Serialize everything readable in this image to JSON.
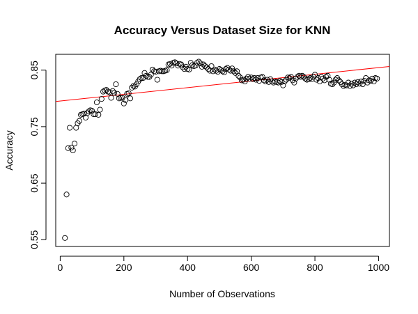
{
  "chart_data": {
    "type": "scatter",
    "title": "Accuracy Versus Dataset Size for KNN",
    "xlabel": "Number of Observations",
    "ylabel": "Accuracy",
    "xlim": [
      -14,
      1034
    ],
    "ylim": [
      0.538,
      0.878
    ],
    "xticks": [
      0,
      200,
      400,
      600,
      800,
      1000
    ],
    "xtick_labels": [
      "0",
      "200",
      "400",
      "600",
      "800",
      "1000"
    ],
    "yticks": [
      0.55,
      0.65,
      0.75,
      0.85
    ],
    "ytick_labels": [
      "0.55",
      "0.65",
      "0.75",
      "0.85"
    ],
    "grid": false,
    "point_color": "#000000",
    "fit_color": "#ff0000",
    "fit_line": {
      "x": [
        -14,
        1034
      ],
      "y": [
        0.7945,
        0.8565
      ]
    },
    "points": [
      [
        15,
        0.553
      ],
      [
        20,
        0.63
      ],
      [
        25,
        0.712
      ],
      [
        30,
        0.748
      ],
      [
        35,
        0.713
      ],
      [
        40,
        0.708
      ],
      [
        45,
        0.72
      ],
      [
        50,
        0.748
      ],
      [
        55,
        0.756
      ],
      [
        60,
        0.76
      ],
      [
        65,
        0.771
      ],
      [
        70,
        0.772
      ],
      [
        75,
        0.773
      ],
      [
        80,
        0.766
      ],
      [
        85,
        0.774
      ],
      [
        90,
        0.777
      ],
      [
        95,
        0.779
      ],
      [
        100,
        0.778
      ],
      [
        105,
        0.772
      ],
      [
        110,
        0.772
      ],
      [
        115,
        0.793
      ],
      [
        120,
        0.771
      ],
      [
        125,
        0.78
      ],
      [
        130,
        0.799
      ],
      [
        135,
        0.812
      ],
      [
        140,
        0.814
      ],
      [
        145,
        0.815
      ],
      [
        150,
        0.812
      ],
      [
        155,
        0.811
      ],
      [
        160,
        0.801
      ],
      [
        165,
        0.813
      ],
      [
        170,
        0.81
      ],
      [
        175,
        0.825
      ],
      [
        180,
        0.808
      ],
      [
        185,
        0.8
      ],
      [
        190,
        0.801
      ],
      [
        195,
        0.801
      ],
      [
        200,
        0.791
      ],
      [
        205,
        0.797
      ],
      [
        210,
        0.808
      ],
      [
        215,
        0.809
      ],
      [
        220,
        0.8
      ],
      [
        225,
        0.819
      ],
      [
        230,
        0.822
      ],
      [
        235,
        0.821
      ],
      [
        240,
        0.825
      ],
      [
        245,
        0.83
      ],
      [
        250,
        0.834
      ],
      [
        255,
        0.836
      ],
      [
        260,
        0.836
      ],
      [
        265,
        0.845
      ],
      [
        270,
        0.84
      ],
      [
        275,
        0.838
      ],
      [
        280,
        0.838
      ],
      [
        285,
        0.842
      ],
      [
        290,
        0.851
      ],
      [
        295,
        0.848
      ],
      [
        300,
        0.847
      ],
      [
        305,
        0.833
      ],
      [
        310,
        0.848
      ],
      [
        315,
        0.849
      ],
      [
        320,
        0.848
      ],
      [
        325,
        0.848
      ],
      [
        330,
        0.849
      ],
      [
        335,
        0.85
      ],
      [
        340,
        0.86
      ],
      [
        345,
        0.861
      ],
      [
        350,
        0.858
      ],
      [
        355,
        0.863
      ],
      [
        360,
        0.864
      ],
      [
        365,
        0.862
      ],
      [
        370,
        0.858
      ],
      [
        375,
        0.861
      ],
      [
        380,
        0.86
      ],
      [
        385,
        0.855
      ],
      [
        390,
        0.852
      ],
      [
        395,
        0.856
      ],
      [
        400,
        0.852
      ],
      [
        405,
        0.851
      ],
      [
        410,
        0.863
      ],
      [
        415,
        0.859
      ],
      [
        420,
        0.857
      ],
      [
        425,
        0.858
      ],
      [
        430,
        0.863
      ],
      [
        435,
        0.865
      ],
      [
        440,
        0.862
      ],
      [
        445,
        0.856
      ],
      [
        450,
        0.86
      ],
      [
        455,
        0.857
      ],
      [
        460,
        0.855
      ],
      [
        465,
        0.852
      ],
      [
        470,
        0.849
      ],
      [
        475,
        0.857
      ],
      [
        480,
        0.848
      ],
      [
        485,
        0.851
      ],
      [
        490,
        0.849
      ],
      [
        495,
        0.847
      ],
      [
        500,
        0.852
      ],
      [
        505,
        0.85
      ],
      [
        510,
        0.848
      ],
      [
        515,
        0.846
      ],
      [
        520,
        0.852
      ],
      [
        525,
        0.854
      ],
      [
        530,
        0.851
      ],
      [
        535,
        0.849
      ],
      [
        540,
        0.853
      ],
      [
        545,
        0.848
      ],
      [
        550,
        0.845
      ],
      [
        555,
        0.848
      ],
      [
        560,
        0.84
      ],
      [
        565,
        0.837
      ],
      [
        570,
        0.832
      ],
      [
        575,
        0.833
      ],
      [
        580,
        0.83
      ],
      [
        585,
        0.835
      ],
      [
        590,
        0.838
      ],
      [
        595,
        0.835
      ],
      [
        600,
        0.837
      ],
      [
        605,
        0.834
      ],
      [
        610,
        0.836
      ],
      [
        615,
        0.833
      ],
      [
        620,
        0.836
      ],
      [
        625,
        0.831
      ],
      [
        630,
        0.837
      ],
      [
        635,
        0.838
      ],
      [
        640,
        0.832
      ],
      [
        645,
        0.83
      ],
      [
        650,
        0.833
      ],
      [
        655,
        0.829
      ],
      [
        660,
        0.834
      ],
      [
        665,
        0.83
      ],
      [
        670,
        0.828
      ],
      [
        675,
        0.83
      ],
      [
        680,
        0.829
      ],
      [
        685,
        0.828
      ],
      [
        690,
        0.831
      ],
      [
        695,
        0.829
      ],
      [
        700,
        0.823
      ],
      [
        705,
        0.83
      ],
      [
        710,
        0.833
      ],
      [
        715,
        0.837
      ],
      [
        720,
        0.836
      ],
      [
        725,
        0.838
      ],
      [
        730,
        0.832
      ],
      [
        735,
        0.828
      ],
      [
        740,
        0.835
      ],
      [
        745,
        0.838
      ],
      [
        750,
        0.84
      ],
      [
        755,
        0.838
      ],
      [
        760,
        0.84
      ],
      [
        765,
        0.838
      ],
      [
        770,
        0.835
      ],
      [
        775,
        0.833
      ],
      [
        780,
        0.834
      ],
      [
        785,
        0.836
      ],
      [
        790,
        0.834
      ],
      [
        795,
        0.838
      ],
      [
        800,
        0.842
      ],
      [
        805,
        0.833
      ],
      [
        810,
        0.836
      ],
      [
        815,
        0.83
      ],
      [
        820,
        0.838
      ],
      [
        825,
        0.835
      ],
      [
        830,
        0.832
      ],
      [
        835,
        0.838
      ],
      [
        840,
        0.84
      ],
      [
        845,
        0.833
      ],
      [
        850,
        0.826
      ],
      [
        855,
        0.825
      ],
      [
        860,
        0.828
      ],
      [
        865,
        0.833
      ],
      [
        870,
        0.836
      ],
      [
        875,
        0.832
      ],
      [
        880,
        0.829
      ],
      [
        885,
        0.825
      ],
      [
        890,
        0.822
      ],
      [
        895,
        0.824
      ],
      [
        900,
        0.823
      ],
      [
        905,
        0.828
      ],
      [
        910,
        0.822
      ],
      [
        915,
        0.826
      ],
      [
        920,
        0.823
      ],
      [
        925,
        0.828
      ],
      [
        930,
        0.825
      ],
      [
        935,
        0.829
      ],
      [
        940,
        0.826
      ],
      [
        945,
        0.83
      ],
      [
        950,
        0.825
      ],
      [
        955,
        0.831
      ],
      [
        960,
        0.836
      ],
      [
        965,
        0.828
      ],
      [
        970,
        0.832
      ],
      [
        975,
        0.831
      ],
      [
        980,
        0.835
      ],
      [
        985,
        0.83
      ],
      [
        990,
        0.836
      ],
      [
        995,
        0.835
      ]
    ]
  }
}
